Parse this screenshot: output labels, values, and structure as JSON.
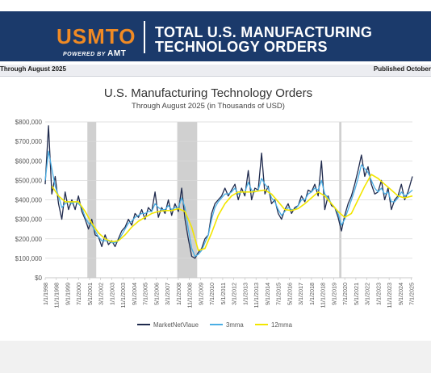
{
  "header": {
    "logo_text": "USMTO",
    "powered_by": "POWERED BY",
    "powered_brand": "AMT",
    "title_line1": "TOTAL U.S. MANUFACTURING",
    "title_line2": "TECHNOLOGY ORDERS",
    "subtitle_left": "Through August 2025",
    "subtitle_right": "Published October",
    "colors": {
      "banner": "#1b3a6b",
      "logo": "#f08a24"
    }
  },
  "chart_data": {
    "type": "line",
    "title": "U.S. Manufacturing Technology Orders",
    "subtitle": "Through August 2025 (in Thousands of USD)",
    "ylim": [
      0,
      800000
    ],
    "y_ticks": [
      "$0",
      "$100,000",
      "$200,000",
      "$300,000",
      "$400,000",
      "$500,000",
      "$600,000",
      "$700,000",
      "$800,000"
    ],
    "x_range": [
      "1998-01",
      "2025-08"
    ],
    "x_ticks": [
      "1/1/1998",
      "11/1/1998",
      "9/1/1999",
      "7/1/2000",
      "5/1/2001",
      "3/1/2002",
      "1/1/2003",
      "11/1/2003",
      "9/1/2004",
      "7/1/2005",
      "5/1/2006",
      "3/1/2007",
      "1/1/2008",
      "11/1/2008",
      "9/1/2009",
      "7/1/2010",
      "5/1/2011",
      "3/1/2012",
      "1/1/2013",
      "11/1/2013",
      "9/1/2014",
      "7/1/2015",
      "5/1/2016",
      "3/1/2017",
      "1/1/2018",
      "11/1/2018",
      "9/1/2019",
      "7/1/2020",
      "5/1/2021",
      "3/1/2022",
      "1/1/2023",
      "11/1/2023",
      "9/1/2024",
      "7/1/2025"
    ],
    "recessions": [
      [
        "2001-03",
        "2001-11"
      ],
      [
        "2007-12",
        "2009-06"
      ],
      [
        "2020-02",
        "2020-04"
      ]
    ],
    "grid": "horizontal",
    "legend_position": "bottom",
    "series": [
      {
        "name": "MarketNetVlaue",
        "color": "#1f2a4d",
        "x": [
          "1998-01",
          "1998-04",
          "1998-07",
          "1998-10",
          "1999-01",
          "1999-04",
          "1999-07",
          "1999-10",
          "2000-01",
          "2000-04",
          "2000-07",
          "2000-10",
          "2001-01",
          "2001-04",
          "2001-07",
          "2001-10",
          "2002-01",
          "2002-04",
          "2002-07",
          "2002-10",
          "2003-01",
          "2003-04",
          "2003-07",
          "2003-10",
          "2004-01",
          "2004-04",
          "2004-07",
          "2004-10",
          "2005-01",
          "2005-04",
          "2005-07",
          "2005-10",
          "2006-01",
          "2006-04",
          "2006-07",
          "2006-10",
          "2007-01",
          "2007-04",
          "2007-07",
          "2007-10",
          "2008-01",
          "2008-04",
          "2008-07",
          "2008-10",
          "2009-01",
          "2009-04",
          "2009-07",
          "2009-10",
          "2010-01",
          "2010-04",
          "2010-07",
          "2010-10",
          "2011-01",
          "2011-04",
          "2011-07",
          "2011-10",
          "2012-01",
          "2012-04",
          "2012-07",
          "2012-10",
          "2013-01",
          "2013-04",
          "2013-07",
          "2013-10",
          "2014-01",
          "2014-04",
          "2014-07",
          "2014-10",
          "2015-01",
          "2015-04",
          "2015-07",
          "2015-10",
          "2016-01",
          "2016-04",
          "2016-07",
          "2016-10",
          "2017-01",
          "2017-04",
          "2017-07",
          "2017-10",
          "2018-01",
          "2018-04",
          "2018-07",
          "2018-10",
          "2019-01",
          "2019-04",
          "2019-07",
          "2019-10",
          "2020-01",
          "2020-04",
          "2020-07",
          "2020-10",
          "2021-01",
          "2021-04",
          "2021-07",
          "2021-10",
          "2022-01",
          "2022-04",
          "2022-07",
          "2022-10",
          "2023-01",
          "2023-04",
          "2023-07",
          "2023-10",
          "2024-01",
          "2024-04",
          "2024-07",
          "2024-10",
          "2025-01",
          "2025-04",
          "2025-08"
        ],
        "values": [
          480000,
          780000,
          430000,
          520000,
          380000,
          300000,
          440000,
          350000,
          400000,
          350000,
          420000,
          340000,
          300000,
          250000,
          300000,
          220000,
          210000,
          160000,
          220000,
          170000,
          190000,
          160000,
          200000,
          240000,
          260000,
          300000,
          270000,
          330000,
          310000,
          350000,
          300000,
          360000,
          340000,
          440000,
          310000,
          360000,
          330000,
          400000,
          320000,
          380000,
          340000,
          460000,
          300000,
          200000,
          110000,
          100000,
          130000,
          150000,
          200000,
          220000,
          330000,
          380000,
          400000,
          420000,
          460000,
          420000,
          450000,
          480000,
          400000,
          460000,
          420000,
          550000,
          400000,
          460000,
          450000,
          640000,
          430000,
          470000,
          380000,
          400000,
          330000,
          300000,
          350000,
          380000,
          330000,
          360000,
          370000,
          420000,
          390000,
          450000,
          440000,
          480000,
          420000,
          600000,
          350000,
          420000,
          370000,
          360000,
          310000,
          240000,
          320000,
          380000,
          420000,
          480000,
          550000,
          630000,
          520000,
          570000,
          480000,
          430000,
          440000,
          500000,
          400000,
          460000,
          350000,
          400000,
          420000,
          480000,
          400000,
          440000,
          520000
        ]
      },
      {
        "name": "3mma",
        "color": "#4aaee4",
        "x": [
          "1998-01",
          "1998-04",
          "1998-07",
          "1998-10",
          "1999-01",
          "1999-04",
          "1999-07",
          "1999-10",
          "2000-01",
          "2000-04",
          "2000-07",
          "2000-10",
          "2001-01",
          "2001-04",
          "2001-07",
          "2001-10",
          "2002-01",
          "2002-04",
          "2002-07",
          "2002-10",
          "2003-01",
          "2003-04",
          "2003-07",
          "2003-10",
          "2004-01",
          "2004-04",
          "2004-07",
          "2004-10",
          "2005-01",
          "2005-04",
          "2005-07",
          "2005-10",
          "2006-01",
          "2006-04",
          "2006-07",
          "2006-10",
          "2007-01",
          "2007-04",
          "2007-07",
          "2007-10",
          "2008-01",
          "2008-04",
          "2008-07",
          "2008-10",
          "2009-01",
          "2009-04",
          "2009-07",
          "2009-10",
          "2010-01",
          "2010-04",
          "2010-07",
          "2010-10",
          "2011-01",
          "2011-04",
          "2011-07",
          "2011-10",
          "2012-01",
          "2012-04",
          "2012-07",
          "2012-10",
          "2013-01",
          "2013-04",
          "2013-07",
          "2013-10",
          "2014-01",
          "2014-04",
          "2014-07",
          "2014-10",
          "2015-01",
          "2015-04",
          "2015-07",
          "2015-10",
          "2016-01",
          "2016-04",
          "2016-07",
          "2016-10",
          "2017-01",
          "2017-04",
          "2017-07",
          "2017-10",
          "2018-01",
          "2018-04",
          "2018-07",
          "2018-10",
          "2019-01",
          "2019-04",
          "2019-07",
          "2019-10",
          "2020-01",
          "2020-04",
          "2020-07",
          "2020-10",
          "2021-01",
          "2021-04",
          "2021-07",
          "2021-10",
          "2022-01",
          "2022-04",
          "2022-07",
          "2022-10",
          "2023-01",
          "2023-04",
          "2023-07",
          "2023-10",
          "2024-01",
          "2024-04",
          "2024-07",
          "2024-10",
          "2025-01",
          "2025-04",
          "2025-08"
        ],
        "values": [
          500000,
          650000,
          560000,
          470000,
          420000,
          360000,
          380000,
          390000,
          380000,
          390000,
          380000,
          360000,
          310000,
          280000,
          270000,
          240000,
          210000,
          190000,
          190000,
          190000,
          180000,
          180000,
          190000,
          220000,
          250000,
          280000,
          290000,
          310000,
          320000,
          330000,
          330000,
          340000,
          340000,
          380000,
          360000,
          350000,
          350000,
          370000,
          350000,
          360000,
          360000,
          410000,
          360000,
          250000,
          150000,
          110000,
          120000,
          140000,
          180000,
          220000,
          300000,
          360000,
          390000,
          410000,
          430000,
          430000,
          440000,
          460000,
          430000,
          440000,
          440000,
          490000,
          450000,
          440000,
          450000,
          510000,
          480000,
          460000,
          410000,
          390000,
          350000,
          320000,
          340000,
          360000,
          350000,
          350000,
          370000,
          400000,
          400000,
          430000,
          440000,
          460000,
          450000,
          500000,
          430000,
          410000,
          380000,
          360000,
          330000,
          270000,
          300000,
          350000,
          400000,
          450000,
          510000,
          580000,
          560000,
          540000,
          500000,
          460000,
          440000,
          460000,
          430000,
          440000,
          390000,
          390000,
          410000,
          440000,
          420000,
          430000,
          450000
        ]
      },
      {
        "name": "12mma",
        "color": "#f2e600",
        "x": [
          "1998-07",
          "1999-01",
          "1999-07",
          "2000-01",
          "2000-07",
          "2001-01",
          "2001-07",
          "2002-01",
          "2002-07",
          "2003-01",
          "2003-07",
          "2004-01",
          "2004-07",
          "2005-01",
          "2005-07",
          "2006-01",
          "2006-07",
          "2007-01",
          "2007-07",
          "2008-01",
          "2008-07",
          "2009-01",
          "2009-07",
          "2010-01",
          "2010-07",
          "2011-01",
          "2011-07",
          "2012-01",
          "2012-07",
          "2013-01",
          "2013-07",
          "2014-01",
          "2014-07",
          "2015-01",
          "2015-07",
          "2016-01",
          "2016-07",
          "2017-01",
          "2017-07",
          "2018-01",
          "2018-07",
          "2019-01",
          "2019-07",
          "2020-01",
          "2020-07",
          "2021-01",
          "2021-07",
          "2022-01",
          "2022-07",
          "2023-01",
          "2023-07",
          "2024-01",
          "2024-07",
          "2025-01",
          "2025-08"
        ],
        "values": [
          470000,
          420000,
          390000,
          390000,
          390000,
          340000,
          280000,
          230000,
          200000,
          185000,
          190000,
          220000,
          260000,
          290000,
          310000,
          330000,
          340000,
          345000,
          345000,
          355000,
          340000,
          260000,
          140000,
          150000,
          230000,
          320000,
          380000,
          420000,
          440000,
          440000,
          440000,
          445000,
          450000,
          430000,
          390000,
          350000,
          345000,
          355000,
          380000,
          410000,
          440000,
          420000,
          380000,
          340000,
          310000,
          330000,
          400000,
          470000,
          530000,
          510000,
          480000,
          450000,
          420000,
          410000,
          420000
        ]
      }
    ]
  }
}
